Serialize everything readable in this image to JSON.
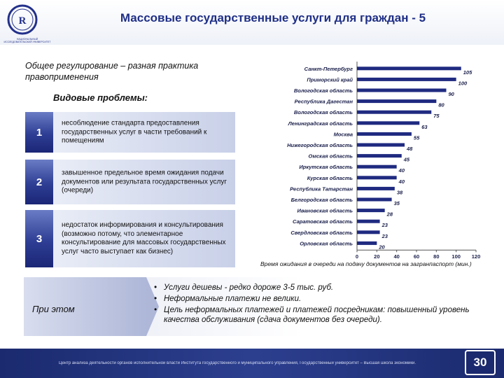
{
  "header": {
    "title": "Массовые государственные услуги для граждан - 5",
    "logo_caption": "НАЦИОНАЛЬНЫЙ ИССЛЕДОВАТЕЛЬСКИЙ УНИВЕРСИТЕТ",
    "colors": {
      "brand": "#1f2f86",
      "footer": "#1b2a6e"
    }
  },
  "subtitle": "Общее регулирование – разная практика правоприменения",
  "problems": {
    "title": "Видовые проблемы:",
    "items": [
      {
        "num": "1",
        "text": "несоблюдение стандарта предоставления государственных услуг в части требований к помещениям"
      },
      {
        "num": "2",
        "text": "завышенное предельное время ожидания подачи документов или результата государственных услуг (очереди)"
      },
      {
        "num": "3",
        "text": "недостаток информирования и консультирования (возможно потому, что элементарное консультирование для массовых государственных услуг часто выступает как бизнес)"
      }
    ]
  },
  "chart_data": {
    "type": "bar",
    "orientation": "horizontal",
    "categories": [
      "Санкт-Петербург",
      "Приморский край",
      "Вологодская область",
      "Республика Дагестан",
      "Вологодская область",
      "Ленинградская область",
      "Москва",
      "Нижегородская область",
      "Омская область",
      "Иркутская область",
      "Курская область",
      "Республика Татарстан",
      "Белгородская область",
      "Ивановская область",
      "Саратовская область",
      "Свердловская область",
      "Орловская область"
    ],
    "values": [
      105,
      100,
      90,
      80,
      75,
      63,
      55,
      48,
      45,
      40,
      40,
      38,
      35,
      28,
      23,
      23,
      20
    ],
    "xlim": [
      0,
      120
    ],
    "xticks": [
      0,
      20,
      40,
      60,
      80,
      100,
      120
    ],
    "grid": false,
    "legend": "none",
    "bar_color": "#1f2a80",
    "caption": "Время ожидания в очереди на подачу документов на загранпаспорт (мин.)"
  },
  "bottom": {
    "label": "При этом",
    "bullet_glyph": "•",
    "bullets": [
      "Услуги дешевы - редко дороже 3-5 тыс. руб.",
      "Неформальные платежи не велики.",
      "Цель неформальных платежей и платежей посредникам: повышенный уровень качества обслуживания (сдача документов без очереди)."
    ]
  },
  "footer": {
    "text": "Центр анализа деятельности органов исполнительной власти Института государственного и муниципального управления, Государственный университет – Высшая школа экономики.",
    "page_number": "30"
  }
}
